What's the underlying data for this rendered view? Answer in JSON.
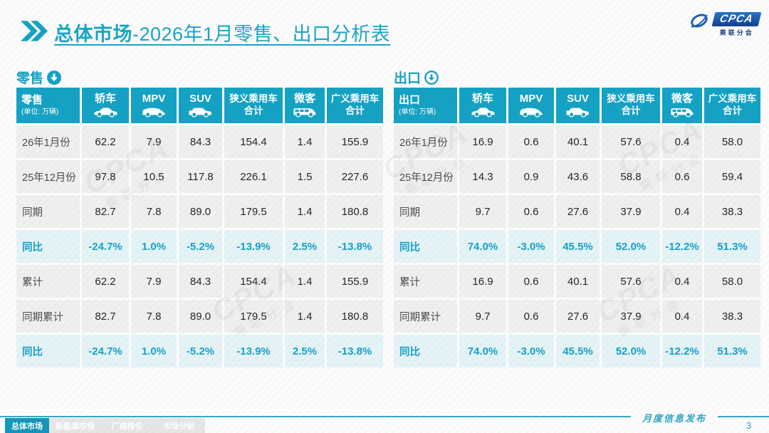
{
  "header": {
    "title_bold": "总体市场",
    "title_rest": "-2026年1月零售、出口分析表",
    "logo": {
      "name": "CPCA",
      "subtitle": "乘联分会"
    }
  },
  "unit_note": "(单位: 万辆)",
  "columns": [
    {
      "label": "轿车",
      "icon": "sedan-car-icon"
    },
    {
      "label": "MPV",
      "icon": "mpv-car-icon"
    },
    {
      "label": "SUV",
      "icon": "suv-car-icon"
    },
    {
      "label": "狭义乘用车合计",
      "lines": [
        "狭义乘用车",
        "合计"
      ]
    },
    {
      "label": "微客",
      "icon": "microvan-car-icon"
    },
    {
      "label": "广义乘用车合计",
      "lines": [
        "广义乘用车",
        "合计"
      ]
    }
  ],
  "tables": [
    {
      "section_title": "零售",
      "arrow_style": "solid",
      "corner_title": "零售",
      "rows": [
        {
          "label": "26年1月份",
          "type": "data",
          "values": [
            "62.2",
            "7.9",
            "84.3",
            "154.4",
            "1.4",
            "155.9"
          ]
        },
        {
          "label": "25年12月份",
          "type": "data",
          "values": [
            "97.8",
            "10.5",
            "117.8",
            "226.1",
            "1.5",
            "227.6"
          ]
        },
        {
          "label": "同期",
          "type": "data",
          "values": [
            "82.7",
            "7.8",
            "89.0",
            "179.5",
            "1.4",
            "180.8"
          ]
        },
        {
          "label": "同比",
          "type": "highlight",
          "values": [
            "-24.7%",
            "1.0%",
            "-5.2%",
            "-13.9%",
            "2.5%",
            "-13.8%"
          ]
        },
        {
          "label": "累计",
          "type": "data",
          "values": [
            "62.2",
            "7.9",
            "84.3",
            "154.4",
            "1.4",
            "155.9"
          ]
        },
        {
          "label": "同期累计",
          "type": "data",
          "values": [
            "82.7",
            "7.8",
            "89.0",
            "179.5",
            "1.4",
            "180.8"
          ]
        },
        {
          "label": "同比",
          "type": "highlight",
          "values": [
            "-24.7%",
            "1.0%",
            "-5.2%",
            "-13.9%",
            "2.5%",
            "-13.8%"
          ]
        }
      ]
    },
    {
      "section_title": "出口",
      "arrow_style": "outline",
      "corner_title": "出口",
      "rows": [
        {
          "label": "26年1月份",
          "type": "data",
          "values": [
            "16.9",
            "0.6",
            "40.1",
            "57.6",
            "0.4",
            "58.0"
          ]
        },
        {
          "label": "25年12月份",
          "type": "data",
          "values": [
            "14.3",
            "0.9",
            "43.6",
            "58.8",
            "0.6",
            "59.4"
          ]
        },
        {
          "label": "同期",
          "type": "data",
          "values": [
            "9.7",
            "0.6",
            "27.6",
            "37.9",
            "0.4",
            "38.3"
          ]
        },
        {
          "label": "同比",
          "type": "highlight",
          "values": [
            "74.0%",
            "-3.0%",
            "45.5%",
            "52.0%",
            "-12.2%",
            "51.3%"
          ]
        },
        {
          "label": "累计",
          "type": "data",
          "values": [
            "16.9",
            "0.6",
            "40.1",
            "57.6",
            "0.4",
            "58.0"
          ]
        },
        {
          "label": "同期累计",
          "type": "data",
          "values": [
            "9.7",
            "0.6",
            "27.6",
            "37.9",
            "0.4",
            "38.3"
          ]
        },
        {
          "label": "同比",
          "type": "highlight",
          "values": [
            "74.0%",
            "-3.0%",
            "45.5%",
            "52.0%",
            "-12.2%",
            "51.3%"
          ]
        }
      ]
    }
  ],
  "watermark": {
    "text": "CPCA",
    "subtext": "乘联分会"
  },
  "footer": {
    "tabs": [
      {
        "label": "总体市场",
        "active": true
      },
      {
        "label": "新能源市场",
        "active": false
      },
      {
        "label": "厂商排名",
        "active": false
      },
      {
        "label": "市场分析",
        "active": false
      }
    ],
    "publish_label": "月度信息发布",
    "page_number": "3"
  },
  "colors": {
    "accent": "#14a2c4",
    "highlight_text": "#17a0c8",
    "title_text": "#17a6c8",
    "logo_blue": "#1b3f8f",
    "footer_line": "#35a7c6"
  }
}
